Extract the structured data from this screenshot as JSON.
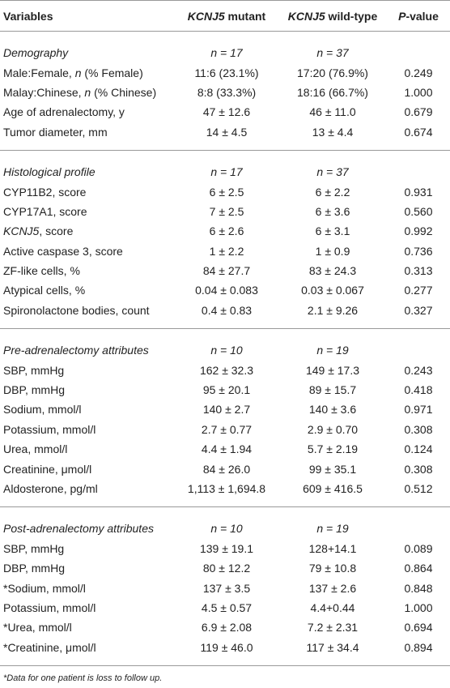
{
  "table": {
    "header": [
      "Variables",
      [
        {
          "i": "KCNJ5"
        },
        " mutant"
      ],
      [
        {
          "i": "KCNJ5"
        },
        " wild-type"
      ],
      [
        {
          "i": "P"
        },
        "-value"
      ]
    ],
    "sections": [
      {
        "title": "Demography",
        "n_mutant": "n = 17",
        "n_wild": "n = 37",
        "rows": [
          [
            [
              "Male:Female, ",
              {
                "i": "n"
              },
              " (% Female)"
            ],
            "11:6 (23.1%)",
            "17:20 (76.9%)",
            "0.249"
          ],
          [
            [
              "Malay:Chinese, ",
              {
                "i": "n"
              },
              " (% Chinese)"
            ],
            "8:8 (33.3%)",
            "18:16 (66.7%)",
            "1.000"
          ],
          [
            "Age of adrenalectomy, y",
            "47 ± 12.6",
            "46 ± 11.0",
            "0.679"
          ],
          [
            "Tumor diameter, mm",
            "14 ± 4.5",
            "13 ± 4.4",
            "0.674"
          ]
        ]
      },
      {
        "title": "Histological profile",
        "n_mutant": "n = 17",
        "n_wild": "n = 37",
        "rows": [
          [
            "CYP11B2, score",
            "6 ± 2.5",
            "6 ± 2.2",
            "0.931"
          ],
          [
            "CYP17A1, score",
            "7 ± 2.5",
            "6 ± 3.6",
            "0.560"
          ],
          [
            [
              {
                "i": "KCNJ5"
              },
              ", score"
            ],
            "6 ± 2.6",
            "6 ± 3.1",
            "0.992"
          ],
          [
            "Active caspase 3, score",
            "1 ± 2.2",
            "1 ± 0.9",
            "0.736"
          ],
          [
            "ZF-like cells, %",
            "84 ± 27.7",
            "83 ± 24.3",
            "0.313"
          ],
          [
            "Atypical cells, %",
            "0.04 ± 0.083",
            "0.03 ± 0.067",
            "0.277"
          ],
          [
            "Spironolactone bodies, count",
            "0.4 ± 0.83",
            "2.1 ± 9.26",
            "0.327"
          ]
        ]
      },
      {
        "title": "Pre-adrenalectomy attributes",
        "n_mutant": "n = 10",
        "n_wild": "n = 19",
        "rows": [
          [
            "SBP, mmHg",
            "162 ± 32.3",
            "149 ± 17.3",
            "0.243"
          ],
          [
            "DBP, mmHg",
            "95 ± 20.1",
            "89 ± 15.7",
            "0.418"
          ],
          [
            "Sodium, mmol/l",
            "140 ± 2.7",
            "140 ± 3.6",
            "0.971"
          ],
          [
            "Potassium, mmol/l",
            "2.7 ± 0.77",
            "2.9 ± 0.70",
            "0.308"
          ],
          [
            "Urea, mmol/l",
            "4.4 ± 1.94",
            "5.7 ± 2.19",
            "0.124"
          ],
          [
            "Creatinine, μmol/l",
            "84 ± 26.0",
            "99 ± 35.1",
            "0.308"
          ],
          [
            "Aldosterone, pg/ml",
            "1,113 ± 1,694.8",
            "609 ± 416.5",
            "0.512"
          ]
        ]
      },
      {
        "title": "Post-adrenalectomy attributes",
        "n_mutant": "n = 10",
        "n_wild": "n = 19",
        "rows": [
          [
            "SBP, mmHg",
            "139 ± 19.1",
            "128+14.1",
            "0.089"
          ],
          [
            "DBP, mmHg",
            "80 ± 12.2",
            "79 ± 10.8",
            "0.864"
          ],
          [
            "*Sodium, mmol/l",
            "137 ± 3.5",
            "137 ± 2.6",
            "0.848"
          ],
          [
            "Potassium, mmol/l",
            "4.5 ± 0.57",
            "4.4+0.44",
            "1.000"
          ],
          [
            "*Urea, mmol/l",
            "6.9 ± 2.08",
            "7.2 ± 2.31",
            "0.694"
          ],
          [
            "*Creatinine, μmol/l",
            "119 ± 46.0",
            "117 ± 34.4",
            "0.894"
          ]
        ]
      }
    ],
    "footnote": "*Data for one patient is loss to follow up."
  }
}
